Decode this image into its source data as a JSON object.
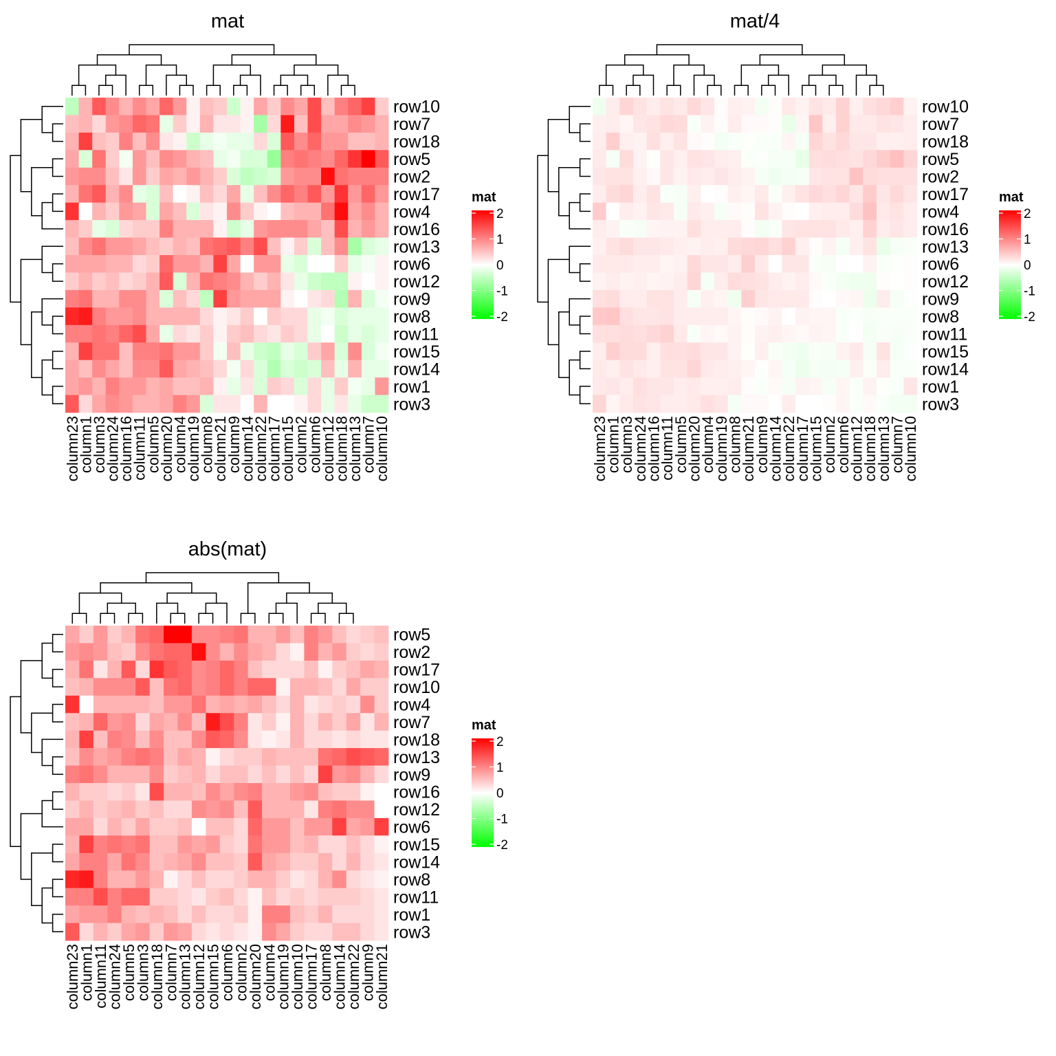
{
  "chart_data": [
    {
      "type": "heatmap",
      "title": "mat",
      "rows": [
        "row10",
        "row7",
        "row18",
        "row5",
        "row2",
        "row17",
        "row4",
        "row16",
        "row13",
        "row6",
        "row12",
        "row9",
        "row8",
        "row11",
        "row15",
        "row14",
        "row1",
        "row3"
      ],
      "columns": [
        "column23",
        "column1",
        "column3",
        "column24",
        "column16",
        "column11",
        "column5",
        "column20",
        "column4",
        "column19",
        "column8",
        "column21",
        "column9",
        "column14",
        "column22",
        "column17",
        "column15",
        "column2",
        "column6",
        "column12",
        "column18",
        "column13",
        "column7",
        "column10"
      ],
      "color_scale": {
        "min": -2,
        "mid": 0,
        "max": 2,
        "low_color": "#00ff00",
        "mid_color": "#ffffff",
        "high_color": "#ff0000"
      },
      "legend": {
        "title": "mat",
        "ticks": [
          "2",
          "1",
          "0",
          "-1",
          "-2"
        ],
        "placement": "right"
      },
      "values": [
        [
          -0.5,
          0.6,
          1.3,
          0.9,
          0.6,
          0.9,
          0.7,
          1.2,
          0.8,
          0.1,
          0.5,
          0.4,
          -0.4,
          0.1,
          0.7,
          0.4,
          0.9,
          0.7,
          1.4,
          0.5,
          1.0,
          1.2,
          1.5,
          0.4
        ],
        [
          0.5,
          0.6,
          0.3,
          0.8,
          0.9,
          1.2,
          1.1,
          -0.2,
          0.4,
          0.1,
          0.6,
          0.2,
          0.2,
          0.1,
          -0.7,
          0.3,
          1.8,
          0.5,
          1.4,
          0.7,
          0.7,
          0.9,
          0.8,
          0.6
        ],
        [
          0.6,
          1.5,
          0.5,
          0.4,
          1.0,
          0.5,
          0.9,
          0.2,
          0.1,
          -0.4,
          -0.2,
          -0.1,
          -0.2,
          -0.2,
          0.3,
          -0.3,
          1.3,
          0.9,
          1.2,
          0.8,
          0.8,
          0.5,
          0.5,
          0.6
        ],
        [
          0.7,
          -0.3,
          1.1,
          0.4,
          -0.1,
          0.8,
          0.5,
          0.9,
          0.8,
          0.6,
          0.5,
          -0.2,
          -0.1,
          -0.3,
          -0.3,
          -0.8,
          1.0,
          1.1,
          1.0,
          0.9,
          1.2,
          1.6,
          2.0,
          1.3
        ],
        [
          0.8,
          0.9,
          0.9,
          0.5,
          0.2,
          0.8,
          0.4,
          0.7,
          0.6,
          0.8,
          0.6,
          0.4,
          -0.3,
          -0.5,
          -0.4,
          -0.3,
          0.8,
          0.9,
          0.9,
          1.9,
          1.1,
          1.0,
          1.0,
          1.0
        ],
        [
          0.6,
          1.1,
          1.3,
          0.6,
          0.9,
          -0.2,
          -0.3,
          0.5,
          0.0,
          0.1,
          0.5,
          0.3,
          0.7,
          -0.2,
          0.5,
          0.9,
          1.2,
          1.0,
          1.3,
          0.8,
          1.6,
          0.8,
          1.2,
          0.8
        ],
        [
          1.6,
          0.0,
          0.6,
          0.4,
          0.8,
          0.7,
          -0.3,
          0.7,
          0.5,
          -0.3,
          0.2,
          0.1,
          0.9,
          0.4,
          0.1,
          0.0,
          0.5,
          0.6,
          0.6,
          1.1,
          1.9,
          0.7,
          0.9,
          0.6
        ],
        [
          0.6,
          0.4,
          -0.2,
          -0.3,
          0.3,
          0.4,
          0.4,
          1.0,
          0.6,
          0.6,
          0.6,
          0.1,
          -0.4,
          -0.2,
          0.8,
          0.9,
          0.9,
          0.9,
          0.7,
          0.5,
          1.4,
          0.6,
          0.8,
          0.6
        ],
        [
          0.5,
          0.9,
          1.1,
          0.8,
          0.8,
          0.7,
          0.5,
          0.4,
          0.6,
          0.5,
          1.1,
          1.2,
          1.3,
          1.0,
          1.4,
          0.5,
          0.1,
          0.4,
          -0.3,
          0.5,
          0.9,
          -0.7,
          -0.3,
          -0.2
        ],
        [
          0.7,
          0.7,
          0.7,
          0.6,
          0.6,
          0.3,
          0.4,
          1.2,
          0.8,
          0.8,
          0.6,
          1.5,
          0.7,
          0.0,
          0.8,
          0.8,
          -0.2,
          -0.3,
          0.0,
          0.0,
          0.4,
          -0.2,
          -0.1,
          0.1
        ],
        [
          0.4,
          0.6,
          0.4,
          0.5,
          0.3,
          0.4,
          0.6,
          1.3,
          -0.3,
          0.6,
          1.1,
          1.0,
          0.9,
          0.6,
          0.4,
          0.6,
          0.2,
          -0.2,
          -0.4,
          -0.5,
          -0.5,
          0.1,
          0.0,
          0.1
        ],
        [
          1.0,
          1.1,
          0.6,
          0.6,
          0.9,
          0.9,
          0.6,
          -0.3,
          0.5,
          0.3,
          -0.5,
          1.5,
          0.8,
          0.7,
          0.7,
          0.7,
          0.1,
          0.0,
          0.2,
          0.3,
          -0.6,
          0.6,
          -0.3,
          -0.1
        ],
        [
          1.7,
          1.8,
          1.0,
          0.8,
          0.8,
          0.9,
          0.6,
          0.6,
          0.6,
          0.6,
          0.3,
          0.1,
          0.2,
          0.4,
          0.0,
          0.4,
          0.3,
          0.3,
          -0.2,
          -0.1,
          -0.3,
          -0.2,
          -0.2,
          -0.2
        ],
        [
          1.0,
          1.0,
          1.1,
          1.0,
          1.2,
          1.4,
          0.7,
          -0.2,
          0.3,
          0.2,
          0.4,
          0.1,
          0.4,
          0.5,
          0.3,
          0.2,
          0.4,
          0.3,
          -0.2,
          0.0,
          -0.4,
          -0.2,
          -0.3,
          -0.2
        ],
        [
          0.6,
          1.5,
          1.1,
          1.1,
          0.5,
          1.0,
          1.0,
          1.1,
          0.8,
          0.8,
          0.4,
          -0.1,
          0.5,
          -0.2,
          -0.4,
          -0.5,
          -0.2,
          -0.3,
          0.4,
          0.7,
          -0.3,
          0.9,
          -0.3,
          -0.1
        ],
        [
          0.7,
          0.5,
          0.9,
          0.7,
          0.5,
          0.9,
          0.9,
          1.3,
          0.7,
          0.6,
          0.5,
          0.3,
          -0.1,
          0.3,
          -0.3,
          -0.6,
          -0.3,
          -0.4,
          -0.3,
          0.5,
          -0.2,
          0.6,
          -0.2,
          -0.2
        ],
        [
          0.7,
          0.8,
          0.6,
          1.0,
          0.8,
          0.8,
          0.6,
          0.7,
          0.5,
          0.5,
          0.6,
          0.1,
          -0.2,
          0.2,
          -0.3,
          0.4,
          0.3,
          -0.3,
          0.3,
          -0.2,
          0.4,
          -0.1,
          -0.2,
          0.8
        ],
        [
          1.3,
          0.3,
          0.7,
          0.9,
          0.8,
          0.6,
          0.6,
          0.7,
          1.0,
          0.8,
          -0.3,
          0.2,
          0.2,
          0.0,
          0.6,
          0.0,
          0.0,
          0.1,
          0.3,
          -0.2,
          0.2,
          -0.2,
          -0.4,
          -0.4
        ]
      ]
    },
    {
      "type": "heatmap",
      "title": "mat/4",
      "rows": [
        "row10",
        "row7",
        "row18",
        "row5",
        "row2",
        "row17",
        "row4",
        "row16",
        "row13",
        "row6",
        "row12",
        "row9",
        "row8",
        "row11",
        "row15",
        "row14",
        "row1",
        "row3"
      ],
      "columns": [
        "column23",
        "column1",
        "column3",
        "column24",
        "column16",
        "column11",
        "column5",
        "column20",
        "column4",
        "column19",
        "column8",
        "column21",
        "column9",
        "column14",
        "column22",
        "column17",
        "column15",
        "column2",
        "column6",
        "column12",
        "column18",
        "column13",
        "column7",
        "column10"
      ],
      "color_scale": {
        "min": -2,
        "mid": 0,
        "max": 2,
        "low_color": "#00ff00",
        "mid_color": "#ffffff",
        "high_color": "#ff0000"
      },
      "legend": {
        "title": "mat",
        "ticks": [
          "2",
          "1",
          "0",
          "-1",
          "-2"
        ],
        "placement": "right"
      },
      "values_note_source": "mat"
    },
    {
      "type": "heatmap",
      "title": "abs(mat)",
      "rows": [
        "row5",
        "row2",
        "row17",
        "row10",
        "row4",
        "row7",
        "row18",
        "row13",
        "row9",
        "row16",
        "row12",
        "row6",
        "row15",
        "row14",
        "row8",
        "row11",
        "row1",
        "row3"
      ],
      "columns": [
        "column23",
        "column1",
        "column11",
        "column24",
        "column5",
        "column3",
        "column18",
        "column7",
        "column13",
        "column12",
        "column15",
        "column6",
        "column2",
        "column20",
        "column4",
        "column19",
        "column10",
        "column17",
        "column8",
        "column14",
        "column22",
        "column9",
        "column21"
      ],
      "color_scale": {
        "min": -2,
        "mid": 0,
        "max": 2,
        "low_color": "#00ff00",
        "mid_color": "#ffffff",
        "high_color": "#ff0000"
      },
      "legend": {
        "title": "mat",
        "ticks": [
          "2",
          "1",
          "0",
          "-1",
          "-2"
        ],
        "placement": "right"
      },
      "values": [
        [
          0.7,
          0.4,
          0.8,
          0.4,
          0.6,
          1.1,
          1.2,
          2.0,
          2.0,
          0.9,
          0.9,
          1.0,
          1.1,
          0.6,
          0.6,
          0.8,
          0.5,
          1.0,
          0.8,
          0.5,
          0.3,
          0.4,
          0.5
        ],
        [
          0.8,
          0.9,
          0.8,
          0.5,
          0.4,
          0.9,
          1.1,
          1.2,
          1.2,
          1.9,
          0.9,
          0.6,
          0.9,
          0.7,
          0.6,
          0.3,
          0.1,
          1.0,
          0.6,
          0.8,
          0.4,
          0.3,
          0.4
        ],
        [
          0.6,
          1.1,
          0.2,
          0.6,
          1.3,
          0.3,
          1.6,
          1.3,
          1.2,
          0.9,
          1.0,
          1.2,
          1.0,
          0.5,
          0.3,
          0.3,
          0.3,
          0.5,
          0.1,
          0.4,
          0.5,
          0.7,
          0.6
        ],
        [
          0.5,
          0.6,
          0.9,
          0.9,
          0.9,
          1.3,
          0.5,
          1.1,
          1.2,
          0.9,
          1.0,
          1.2,
          1.0,
          1.2,
          1.2,
          0.1,
          0.6,
          0.6,
          0.5,
          0.3,
          0.7,
          0.4,
          0.4
        ],
        [
          1.6,
          0.0,
          0.6,
          0.6,
          0.6,
          0.6,
          0.5,
          0.8,
          0.8,
          1.1,
          0.6,
          0.7,
          0.6,
          0.7,
          0.5,
          0.3,
          0.6,
          0.2,
          0.3,
          0.4,
          0.3,
          0.9,
          0.4
        ],
        [
          0.5,
          0.6,
          1.2,
          0.8,
          0.9,
          0.3,
          0.7,
          0.6,
          0.9,
          0.5,
          1.8,
          1.4,
          1.0,
          0.2,
          0.4,
          0.1,
          0.6,
          0.3,
          0.6,
          0.4,
          0.7,
          0.2,
          0.6
        ],
        [
          0.6,
          1.5,
          0.5,
          1.0,
          0.9,
          0.5,
          0.9,
          0.5,
          0.5,
          0.9,
          1.3,
          1.2,
          0.9,
          0.2,
          0.1,
          0.2,
          0.6,
          0.3,
          0.3,
          0.2,
          0.3,
          0.2,
          0.2
        ],
        [
          0.5,
          0.9,
          0.7,
          0.8,
          1.0,
          1.1,
          1.0,
          0.5,
          0.7,
          0.6,
          0.1,
          0.3,
          0.4,
          0.4,
          0.6,
          0.5,
          0.5,
          0.5,
          1.1,
          1.2,
          1.4,
          1.3,
          1.2
        ],
        [
          1.0,
          1.1,
          0.9,
          0.6,
          0.6,
          0.6,
          0.9,
          0.4,
          0.5,
          0.6,
          0.3,
          0.5,
          0.5,
          0.3,
          0.5,
          0.3,
          0.5,
          0.3,
          1.5,
          0.8,
          0.9,
          0.6,
          0.3
        ],
        [
          0.6,
          0.4,
          0.4,
          0.3,
          0.4,
          0.2,
          1.4,
          0.6,
          0.6,
          0.5,
          0.9,
          0.7,
          0.9,
          1.0,
          0.6,
          0.6,
          0.8,
          0.9,
          0.5,
          0.4,
          0.4,
          0.1,
          0.0
        ],
        [
          0.4,
          0.6,
          0.4,
          0.5,
          0.6,
          0.4,
          0.5,
          0.3,
          0.3,
          0.9,
          0.8,
          0.9,
          0.5,
          1.3,
          0.6,
          0.6,
          0.6,
          0.2,
          1.0,
          1.1,
          0.9,
          0.9,
          0.0
        ],
        [
          0.7,
          0.7,
          0.3,
          0.6,
          0.4,
          0.7,
          0.4,
          0.4,
          0.5,
          0.0,
          0.5,
          0.5,
          0.3,
          1.2,
          0.8,
          0.8,
          0.5,
          0.8,
          0.8,
          1.5,
          0.7,
          0.8,
          1.5
        ],
        [
          0.6,
          1.5,
          1.0,
          1.1,
          1.0,
          1.1,
          0.5,
          0.5,
          0.8,
          0.7,
          0.8,
          0.4,
          0.3,
          1.1,
          0.8,
          0.8,
          0.5,
          0.6,
          0.3,
          0.3,
          0.5,
          0.3,
          0.1
        ],
        [
          0.7,
          1.0,
          1.0,
          0.7,
          1.1,
          0.9,
          0.5,
          0.6,
          0.7,
          0.9,
          0.5,
          0.5,
          0.4,
          1.3,
          0.7,
          0.6,
          0.4,
          0.4,
          0.6,
          0.3,
          0.6,
          0.3,
          0.2
        ],
        [
          1.7,
          1.8,
          1.0,
          0.6,
          0.6,
          0.8,
          0.6,
          0.1,
          0.3,
          0.5,
          0.3,
          0.3,
          0.4,
          0.6,
          0.6,
          0.4,
          0.2,
          0.3,
          0.6,
          0.9,
          0.3,
          0.2,
          0.1
        ],
        [
          1.0,
          1.0,
          1.4,
          1.0,
          1.2,
          1.2,
          0.4,
          0.4,
          0.3,
          0.2,
          0.4,
          0.5,
          0.3,
          0.1,
          0.5,
          0.3,
          0.4,
          0.3,
          0.4,
          0.4,
          0.4,
          0.3,
          0.2
        ],
        [
          0.7,
          0.8,
          0.8,
          1.0,
          0.6,
          0.5,
          0.6,
          0.5,
          0.3,
          0.5,
          0.3,
          0.3,
          0.4,
          0.1,
          1.0,
          1.0,
          0.5,
          0.4,
          0.6,
          0.3,
          0.3,
          0.3,
          0.2
        ],
        [
          1.3,
          0.3,
          0.6,
          0.4,
          0.7,
          0.8,
          0.4,
          0.8,
          0.7,
          0.3,
          0.2,
          0.3,
          0.2,
          0.1,
          0.9,
          0.7,
          0.4,
          0.3,
          0.3,
          0.5,
          0.5,
          0.3,
          0.2
        ]
      ]
    }
  ]
}
